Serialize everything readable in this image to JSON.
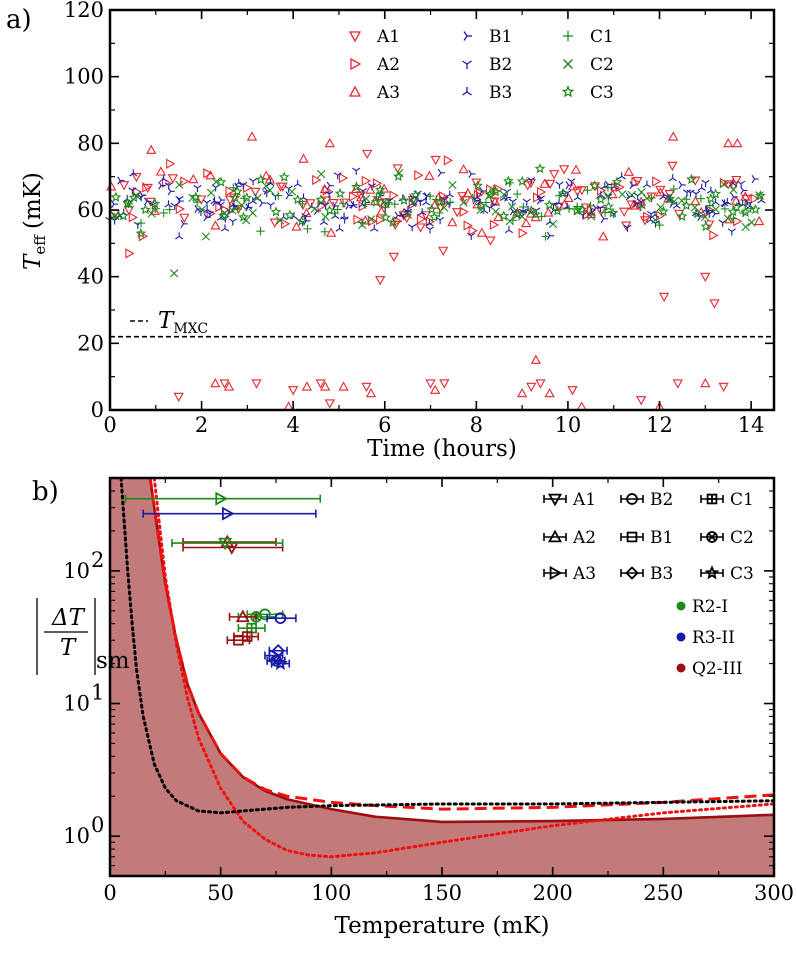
{
  "chart_data": [
    {
      "panel": "a)",
      "type": "scatter",
      "xlabel": "Time (hours)",
      "ylabel": "T_eff (mK)",
      "ylabel_main": "T",
      "ylabel_sub": "eff",
      "ylabel_unit": "(mK)",
      "xlim": [
        0,
        14.5
      ],
      "ylim": [
        0,
        120
      ],
      "xticks": [
        0,
        2,
        4,
        6,
        8,
        10,
        12,
        14
      ],
      "yticks": [
        0,
        20,
        40,
        60,
        80,
        100,
        120
      ],
      "reference_line": {
        "name": "T_MXC",
        "label_main": "T",
        "label_sub": "MXC",
        "value": 22,
        "style": "dashed",
        "color": "#000000"
      },
      "series": [
        {
          "name": "A1",
          "color": "#e8262b",
          "marker": "tri-down"
        },
        {
          "name": "A2",
          "color": "#e8262b",
          "marker": "tri-right"
        },
        {
          "name": "A3",
          "color": "#e8262b",
          "marker": "tri-up"
        },
        {
          "name": "B1",
          "color": "#1a1aa8",
          "marker": "y-right"
        },
        {
          "name": "B2",
          "color": "#1a1aa8",
          "marker": "y-down"
        },
        {
          "name": "B3",
          "color": "#1a1aa8",
          "marker": "y-up"
        },
        {
          "name": "C1",
          "color": "#1e8a1e",
          "marker": "plus"
        },
        {
          "name": "C2",
          "color": "#1e8a1e",
          "marker": "x"
        },
        {
          "name": "C3",
          "color": "#1e8a1e",
          "marker": "star"
        }
      ],
      "sampling": {
        "t_start": 0,
        "t_end": 14.2,
        "step": 0.1,
        "mean_mK": 62,
        "spread_mK": 7,
        "low_cluster": [
          [
            1.5,
            4
          ],
          [
            2.3,
            8
          ],
          [
            2.5,
            8
          ],
          [
            2.6,
            7
          ],
          [
            3.2,
            8
          ],
          [
            3.9,
            1
          ],
          [
            4.0,
            6
          ],
          [
            4.3,
            7
          ],
          [
            4.6,
            8
          ],
          [
            4.7,
            7
          ],
          [
            4.8,
            2
          ],
          [
            5.1,
            7
          ],
          [
            5.6,
            7
          ],
          [
            5.7,
            5
          ],
          [
            7.0,
            8
          ],
          [
            7.1,
            6
          ],
          [
            7.3,
            8
          ],
          [
            9.0,
            5
          ],
          [
            9.2,
            7
          ],
          [
            9.3,
            15
          ],
          [
            9.4,
            8
          ],
          [
            9.6,
            5
          ],
          [
            10.1,
            6
          ],
          [
            10.3,
            1
          ],
          [
            11.6,
            3
          ],
          [
            12.0,
            1
          ],
          [
            12.4,
            8
          ],
          [
            13.0,
            8
          ],
          [
            13.4,
            7
          ]
        ],
        "outliers_high": [
          [
            3.1,
            82
          ],
          [
            4.8,
            80
          ],
          [
            13.5,
            80
          ],
          [
            13.7,
            80
          ],
          [
            12.3,
            82
          ],
          [
            0.9,
            78
          ]
        ],
        "outliers_low": [
          [
            1.4,
            41
          ],
          [
            5.9,
            39
          ],
          [
            6.2,
            46
          ],
          [
            12.1,
            34
          ],
          [
            13.2,
            32
          ],
          [
            13.0,
            40
          ]
        ]
      }
    },
    {
      "panel": "b)",
      "type": "scatter+line",
      "xlabel": "Temperature (mK)",
      "ylabel": "|ΔT/T|_sm",
      "ylabel_parts": {
        "num": "ΔT",
        "den": "T",
        "sub": "sm"
      },
      "xlim": [
        0,
        300
      ],
      "ylim_log10": [
        -0.3,
        2.7
      ],
      "xticks": [
        0,
        50,
        100,
        150,
        200,
        250,
        300
      ],
      "yticks": [
        {
          "value": 1,
          "label": "10",
          "exp": "0"
        },
        {
          "value": 10,
          "label": "10",
          "exp": "1"
        },
        {
          "value": 100,
          "label": "10",
          "exp": "2"
        }
      ],
      "marker_legend": [
        "A1",
        "A2",
        "A3",
        "B2",
        "B1",
        "B3",
        "C1",
        "C2",
        "C3"
      ],
      "color_legend": [
        {
          "name": "R2-I",
          "color": "#1e8a1e"
        },
        {
          "name": "R3-II",
          "color": "#1a1aa8"
        },
        {
          "name": "Q2-III",
          "color": "#9a1010"
        }
      ],
      "points": [
        {
          "name": "A1",
          "device": "Q2-III",
          "x": 55,
          "xerr": [
            22,
            23
          ],
          "y": 150
        },
        {
          "name": "A2",
          "device": "Q2-III",
          "x": 53,
          "xerr": [
            20,
            22
          ],
          "y": 165
        },
        {
          "name": "A3",
          "device": "R2-I",
          "x": 50,
          "xerr": [
            43,
            45
          ],
          "y": 350
        },
        {
          "name": "A3",
          "device": "R3-II",
          "x": 53,
          "xerr": [
            38,
            40
          ],
          "y": 270
        },
        {
          "name": "A1",
          "device": "R2-I",
          "x": 52,
          "xerr": [
            24,
            26
          ],
          "y": 162
        },
        {
          "name": "B2",
          "device": "R2-I",
          "x": 70,
          "xerr": [
            8,
            8
          ],
          "y": 47
        },
        {
          "name": "C2",
          "device": "R2-I",
          "x": 66,
          "xerr": [
            8,
            9
          ],
          "y": 45
        },
        {
          "name": "A2",
          "device": "Q2-III",
          "x": 60,
          "xerr": [
            6,
            6
          ],
          "y": 45
        },
        {
          "name": "B2",
          "device": "R3-II",
          "x": 77,
          "xerr": [
            6,
            7
          ],
          "y": 44
        },
        {
          "name": "C1",
          "device": "R2-I",
          "x": 64,
          "xerr": [
            6,
            6
          ],
          "y": 37
        },
        {
          "name": "C1",
          "device": "Q2-III",
          "x": 62,
          "xerr": [
            6,
            5
          ],
          "y": 32
        },
        {
          "name": "B1",
          "device": "Q2-III",
          "x": 58,
          "xerr": [
            5,
            5
          ],
          "y": 30
        },
        {
          "name": "B3",
          "device": "R3-II",
          "x": 76,
          "xerr": [
            4,
            4
          ],
          "y": 25
        },
        {
          "name": "A3",
          "device": "R3-II",
          "x": 74,
          "xerr": [
            4,
            4
          ],
          "y": 23
        },
        {
          "name": "C2",
          "device": "R3-II",
          "x": 75,
          "xerr": [
            4,
            4
          ],
          "y": 21
        },
        {
          "name": "C3",
          "device": "R3-II",
          "x": 77,
          "xerr": [
            4,
            4
          ],
          "y": 20
        }
      ],
      "curves": [
        {
          "name": "Q2-III bound",
          "color": "#9a1010",
          "style": "solid",
          "filled": true,
          "fill_color": "#c27a7a",
          "x": [
            18,
            20,
            25,
            30,
            35,
            40,
            50,
            60,
            70,
            80,
            100,
            120,
            150,
            200,
            250,
            300
          ],
          "y": [
            520,
            300,
            80,
            30,
            14,
            8.5,
            4.2,
            2.8,
            2.2,
            1.9,
            1.6,
            1.4,
            1.28,
            1.3,
            1.35,
            1.45
          ]
        },
        {
          "name": "red dashed",
          "color": "#ee1111",
          "style": "dashed",
          "filled": false,
          "x": [
            18,
            20,
            25,
            30,
            35,
            40,
            50,
            60,
            70,
            80,
            100,
            120,
            150,
            200,
            250,
            300
          ],
          "y": [
            520,
            300,
            80,
            30,
            14,
            8.5,
            4.2,
            2.8,
            2.25,
            2.0,
            1.8,
            1.7,
            1.6,
            1.65,
            1.8,
            2.05
          ]
        },
        {
          "name": "red dotted",
          "color": "#ee1111",
          "style": "dotted",
          "filled": false,
          "x": [
            20,
            25,
            30,
            35,
            40,
            50,
            60,
            70,
            80,
            90,
            100,
            120,
            150,
            200,
            250,
            300
          ],
          "y": [
            500,
            90,
            28,
            11,
            5.5,
            2.3,
            1.3,
            0.95,
            0.78,
            0.72,
            0.7,
            0.75,
            0.9,
            1.2,
            1.5,
            1.75
          ]
        },
        {
          "name": "black dotted",
          "color": "#000000",
          "style": "dotted",
          "filled": false,
          "x": [
            5,
            8,
            10,
            12,
            15,
            20,
            25,
            30,
            40,
            50,
            60,
            80,
            100,
            150,
            200,
            250,
            300
          ],
          "y": [
            500,
            100,
            40,
            18,
            8,
            3.5,
            2.3,
            1.85,
            1.55,
            1.5,
            1.55,
            1.65,
            1.7,
            1.75,
            1.75,
            1.8,
            1.85
          ]
        }
      ]
    }
  ]
}
